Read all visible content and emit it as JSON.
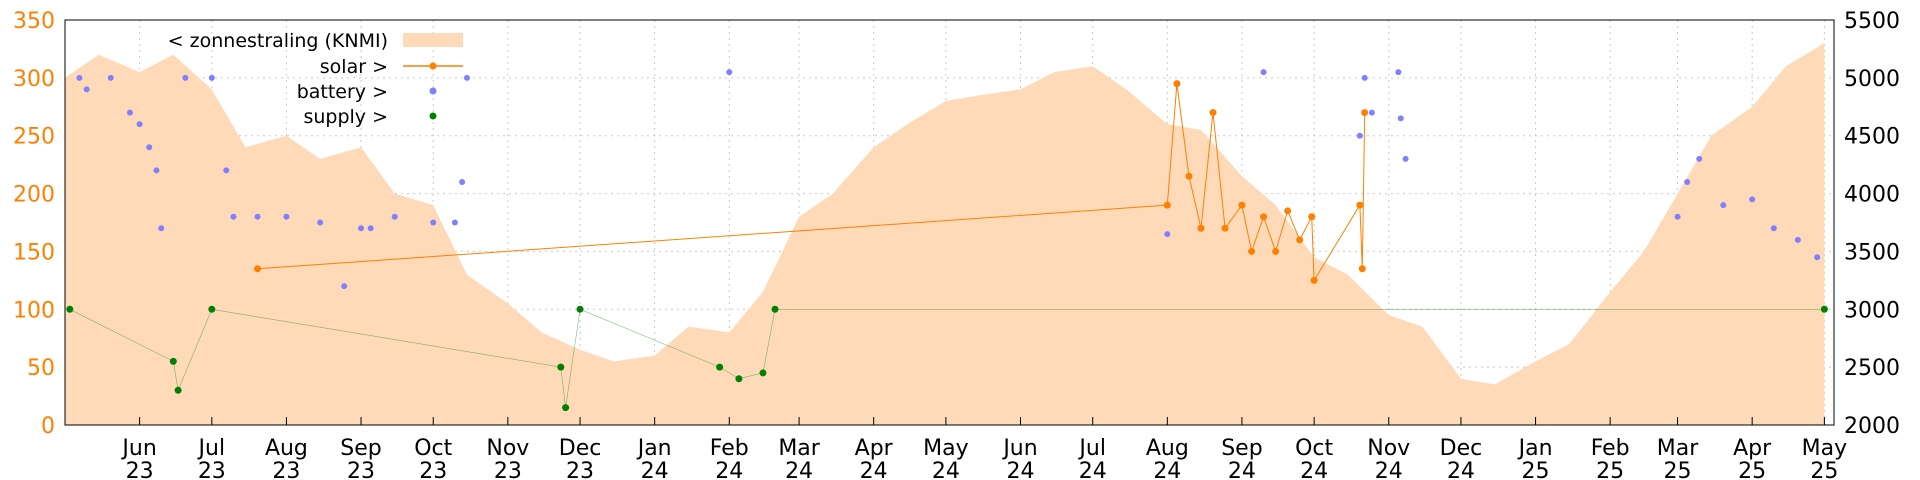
{
  "chart_data": {
    "type": "area",
    "colors": {
      "radiation_fill": "#ffdab9",
      "solar": "#ff8000",
      "battery": "#8080ff",
      "supply": "#008000",
      "left_axis_text": "#ff8000",
      "grid": "#c8c8c8"
    },
    "grid": true,
    "legend_position": "top-left",
    "y_left": {
      "range": [
        0,
        350
      ],
      "ticks": [
        0,
        50,
        100,
        150,
        200,
        250,
        300,
        350
      ]
    },
    "y_right": {
      "range": [
        2000,
        5500
      ],
      "ticks": [
        2000,
        2500,
        3000,
        3500,
        4000,
        4500,
        5000,
        5500
      ]
    },
    "x_axis": {
      "range": [
        "2023-05-01",
        "2025-05-05"
      ],
      "ticks": [
        {
          "date": "2023-06-01",
          "label": "Jun",
          "year": "23"
        },
        {
          "date": "2023-07-01",
          "label": "Jul",
          "year": "23"
        },
        {
          "date": "2023-08-01",
          "label": "Aug",
          "year": "23"
        },
        {
          "date": "2023-09-01",
          "label": "Sep",
          "year": "23"
        },
        {
          "date": "2023-10-01",
          "label": "Oct",
          "year": "23"
        },
        {
          "date": "2023-11-01",
          "label": "Nov",
          "year": "23"
        },
        {
          "date": "2023-12-01",
          "label": "Dec",
          "year": "23"
        },
        {
          "date": "2024-01-01",
          "label": "Jan",
          "year": "24"
        },
        {
          "date": "2024-02-01",
          "label": "Feb",
          "year": "24"
        },
        {
          "date": "2024-03-01",
          "label": "Mar",
          "year": "24"
        },
        {
          "date": "2024-04-01",
          "label": "Apr",
          "year": "24"
        },
        {
          "date": "2024-05-01",
          "label": "May",
          "year": "24"
        },
        {
          "date": "2024-06-01",
          "label": "Jun",
          "year": "24"
        },
        {
          "date": "2024-07-01",
          "label": "Jul",
          "year": "24"
        },
        {
          "date": "2024-08-01",
          "label": "Aug",
          "year": "24"
        },
        {
          "date": "2024-09-01",
          "label": "Sep",
          "year": "24"
        },
        {
          "date": "2024-10-01",
          "label": "Oct",
          "year": "24"
        },
        {
          "date": "2024-11-01",
          "label": "Nov",
          "year": "24"
        },
        {
          "date": "2024-12-01",
          "label": "Dec",
          "year": "24"
        },
        {
          "date": "2025-01-01",
          "label": "Jan",
          "year": "25"
        },
        {
          "date": "2025-02-01",
          "label": "Feb",
          "year": "25"
        },
        {
          "date": "2025-03-01",
          "label": "Mar",
          "year": "25"
        },
        {
          "date": "2025-04-01",
          "label": "Apr",
          "year": "25"
        },
        {
          "date": "2025-05-01",
          "label": "May",
          "year": "25"
        }
      ]
    },
    "legend": [
      {
        "label": "< zonnestraling (KNMI)",
        "kind": "area",
        "color": "#ffdab9"
      },
      {
        "label": "solar >",
        "kind": "line-point",
        "color": "#ff8000"
      },
      {
        "label": "battery >",
        "kind": "point",
        "color": "#8080ff"
      },
      {
        "label": "supply >",
        "kind": "point",
        "color": "#008000"
      }
    ],
    "series": [
      {
        "name": "< zonnestraling (KNMI)",
        "axis": "left",
        "style": "area",
        "points": [
          [
            "2023-05-01",
            300
          ],
          [
            "2023-05-15",
            320
          ],
          [
            "2023-06-01",
            305
          ],
          [
            "2023-06-15",
            320
          ],
          [
            "2023-07-01",
            290
          ],
          [
            "2023-07-15",
            240
          ],
          [
            "2023-08-01",
            250
          ],
          [
            "2023-08-15",
            230
          ],
          [
            "2023-09-01",
            240
          ],
          [
            "2023-09-15",
            200
          ],
          [
            "2023-10-01",
            190
          ],
          [
            "2023-10-15",
            130
          ],
          [
            "2023-11-01",
            105
          ],
          [
            "2023-11-15",
            80
          ],
          [
            "2023-12-01",
            65
          ],
          [
            "2023-12-15",
            55
          ],
          [
            "2024-01-01",
            60
          ],
          [
            "2024-01-15",
            85
          ],
          [
            "2024-02-01",
            80
          ],
          [
            "2024-02-15",
            115
          ],
          [
            "2024-03-01",
            180
          ],
          [
            "2024-03-15",
            200
          ],
          [
            "2024-04-01",
            240
          ],
          [
            "2024-04-15",
            260
          ],
          [
            "2024-05-01",
            280
          ],
          [
            "2024-05-15",
            285
          ],
          [
            "2024-06-01",
            290
          ],
          [
            "2024-06-15",
            305
          ],
          [
            "2024-07-01",
            310
          ],
          [
            "2024-07-15",
            290
          ],
          [
            "2024-08-01",
            260
          ],
          [
            "2024-08-15",
            255
          ],
          [
            "2024-09-01",
            215
          ],
          [
            "2024-09-15",
            190
          ],
          [
            "2024-10-01",
            145
          ],
          [
            "2024-10-15",
            130
          ],
          [
            "2024-11-01",
            95
          ],
          [
            "2024-11-15",
            85
          ],
          [
            "2024-12-01",
            40
          ],
          [
            "2024-12-15",
            35
          ],
          [
            "2025-01-01",
            55
          ],
          [
            "2025-01-15",
            70
          ],
          [
            "2025-02-01",
            115
          ],
          [
            "2025-02-15",
            150
          ],
          [
            "2025-03-01",
            200
          ],
          [
            "2025-03-15",
            250
          ],
          [
            "2025-04-01",
            275
          ],
          [
            "2025-04-15",
            310
          ],
          [
            "2025-05-01",
            330
          ]
        ]
      },
      {
        "name": "solar >",
        "axis": "right",
        "style": "line-point",
        "points": [
          [
            "2023-07-20",
            3350
          ],
          [
            "2024-08-01",
            3900
          ],
          [
            "2024-08-05",
            4950
          ],
          [
            "2024-08-10",
            4150
          ],
          [
            "2024-08-15",
            3700
          ],
          [
            "2024-08-20",
            4700
          ],
          [
            "2024-08-25",
            3700
          ],
          [
            "2024-09-01",
            3900
          ],
          [
            "2024-09-05",
            3500
          ],
          [
            "2024-09-10",
            3800
          ],
          [
            "2024-09-15",
            3500
          ],
          [
            "2024-09-20",
            3850
          ],
          [
            "2024-09-25",
            3600
          ],
          [
            "2024-09-30",
            3800
          ],
          [
            "2024-10-01",
            3250
          ],
          [
            "2024-10-20",
            3900
          ],
          [
            "2024-10-21",
            3350
          ],
          [
            "2024-10-22",
            4700
          ]
        ]
      },
      {
        "name": "battery >",
        "axis": "right",
        "style": "point",
        "points": [
          [
            "2023-05-07",
            5000
          ],
          [
            "2023-05-10",
            4900
          ],
          [
            "2023-05-20",
            5000
          ],
          [
            "2023-05-28",
            4700
          ],
          [
            "2023-06-01",
            4600
          ],
          [
            "2023-06-05",
            4400
          ],
          [
            "2023-06-08",
            4200
          ],
          [
            "2023-06-10",
            3700
          ],
          [
            "2023-06-20",
            5000
          ],
          [
            "2023-07-01",
            5000
          ],
          [
            "2023-07-07",
            4200
          ],
          [
            "2023-07-10",
            3800
          ],
          [
            "2023-07-20",
            3800
          ],
          [
            "2023-08-01",
            3800
          ],
          [
            "2023-08-15",
            3750
          ],
          [
            "2023-09-01",
            3700
          ],
          [
            "2023-09-05",
            3700
          ],
          [
            "2023-09-15",
            3800
          ],
          [
            "2023-10-01",
            3750
          ],
          [
            "2023-10-10",
            3750
          ],
          [
            "2023-10-13",
            4100
          ],
          [
            "2023-10-15",
            5000
          ],
          [
            "2023-08-25",
            3200
          ],
          [
            "2024-02-01",
            5050
          ],
          [
            "2024-08-01",
            3650
          ],
          [
            "2024-09-10",
            5050
          ],
          [
            "2024-10-20",
            4500
          ],
          [
            "2024-10-22",
            5000
          ],
          [
            "2024-10-25",
            4700
          ],
          [
            "2024-11-05",
            5050
          ],
          [
            "2024-11-06",
            4650
          ],
          [
            "2024-11-08",
            4300
          ],
          [
            "2025-03-01",
            3800
          ],
          [
            "2025-03-05",
            4100
          ],
          [
            "2025-03-10",
            4300
          ],
          [
            "2025-03-20",
            3900
          ],
          [
            "2025-04-01",
            3950
          ],
          [
            "2025-04-10",
            3700
          ],
          [
            "2025-04-20",
            3600
          ],
          [
            "2025-04-28",
            3450
          ]
        ]
      },
      {
        "name": "supply >",
        "axis": "right",
        "style": "point",
        "points": [
          [
            "2023-05-03",
            3000
          ],
          [
            "2023-06-15",
            2550
          ],
          [
            "2023-06-17",
            2300
          ],
          [
            "2023-07-01",
            3000
          ],
          [
            "2023-11-23",
            2500
          ],
          [
            "2023-11-25",
            2150
          ],
          [
            "2023-12-01",
            3000
          ],
          [
            "2024-01-28",
            2500
          ],
          [
            "2024-02-05",
            2400
          ],
          [
            "2024-02-15",
            2450
          ],
          [
            "2024-02-20",
            3000
          ],
          [
            "2025-05-01",
            3000
          ]
        ]
      }
    ]
  }
}
